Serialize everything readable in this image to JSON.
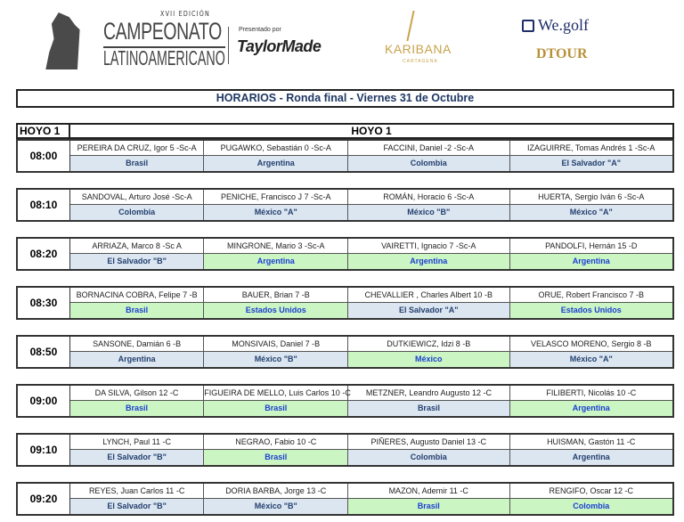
{
  "header": {
    "edition": "XVII EDICIÓN",
    "event_line1": "CAMPEONATO",
    "event_line2": "LATINOAMERICANO",
    "presented_by": "Presentado por",
    "sponsor1": "TaylorMade",
    "sponsor2": "KARIBANA",
    "sponsor2_sub": "CARTAGENA",
    "sponsor3": "We.golf",
    "sponsor4": "DTOUR"
  },
  "title": "HORARIOS  - Ronda final - Viernes 31 de Octubre",
  "table": {
    "hole_label": "HOYO 1",
    "section_label": "HOYO 1",
    "colors": {
      "blue_bg": "#dce6f1",
      "green_bg": "#ccf5c4"
    },
    "groups": [
      {
        "time": "08:00",
        "players": [
          {
            "name": "PEREIRA DA CRUZ, Igor 5 -Sc-A",
            "team": "Brasil",
            "color": "blue"
          },
          {
            "name": "PUGAWKO, Sebastián 0 -Sc-A",
            "team": "Argentina",
            "color": "blue"
          },
          {
            "name": "FACCINI, Daniel -2 -Sc-A",
            "team": "Colombia",
            "color": "blue"
          },
          {
            "name": "IZAGUIRRE, Tomas Andrés 1 -Sc-A",
            "team": "El Salvador \"A\"",
            "color": "blue"
          }
        ]
      },
      {
        "time": "08:10",
        "players": [
          {
            "name": "SANDOVAL, Arturo José  -Sc-A",
            "team": "Colombia",
            "color": "blue"
          },
          {
            "name": "PENICHE, Francisco J  7 -Sc-A",
            "team": "México \"A\"",
            "color": "blue"
          },
          {
            "name": "ROMÁN, Horacio 6 -Sc-A",
            "team": "México \"B\"",
            "color": "blue"
          },
          {
            "name": "HUERTA, Sergio Iván  6 -Sc-A",
            "team": "México \"A\"",
            "color": "blue"
          }
        ]
      },
      {
        "time": "08:20",
        "players": [
          {
            "name": "ARRIAZA, Marco  8 -Sc A",
            "team": "El Salvador \"B\"",
            "color": "blue"
          },
          {
            "name": "MINGRONE, Mario 3 -Sc-A",
            "team": "Argentina",
            "color": "green"
          },
          {
            "name": "VAIRETTI, Ignacio 7 -Sc-A",
            "team": "Argentina",
            "color": "green"
          },
          {
            "name": "PANDOLFI, Hernán 15 -D",
            "team": "Argentina",
            "color": "green"
          }
        ]
      },
      {
        "time": "08:30",
        "players": [
          {
            "name": "BORNACINA COBRA, Felipe 7 -B",
            "team": "Brasil",
            "color": "green"
          },
          {
            "name": "BAUER, Brian 7 -B",
            "team": "Estados Unidos",
            "color": "green"
          },
          {
            "name": "CHEVALLIER , Charles Albert 10 -B",
            "team": "El Salvador \"A\"",
            "color": "blue"
          },
          {
            "name": "ORUE, Robert Francisco 7 -B",
            "team": "Estados Unidos",
            "color": "green"
          }
        ]
      },
      {
        "time": "08:50",
        "players": [
          {
            "name": "SANSONE, Damián 6 -B",
            "team": "Argentina",
            "color": "blue"
          },
          {
            "name": "MONSIVAIS, Daniel 7 -B",
            "team": "México \"B\"",
            "color": "blue"
          },
          {
            "name": "DUTKIEWICZ, Idzi  8 -B",
            "team": "México",
            "color": "green"
          },
          {
            "name": "VELASCO MORENO, Sergio 8 -B",
            "team": "México \"A\"",
            "color": "blue"
          }
        ]
      },
      {
        "time": "09:00",
        "players": [
          {
            "name": "DA SILVA, Gilson 12 -C",
            "team": "Brasil",
            "color": "green"
          },
          {
            "name": "FIGUEIRA DE MELLO, Luis Carlos 10 -C",
            "team": "Brasil",
            "color": "green"
          },
          {
            "name": "METZNER, Leandro Augusto 12 -C",
            "team": "Brasil",
            "color": "blue"
          },
          {
            "name": "FILIBERTI, Nicolás 10 -C",
            "team": "Argentina",
            "color": "green"
          }
        ]
      },
      {
        "time": "09:10",
        "players": [
          {
            "name": "LYNCH, Paul 11 -C",
            "team": "El Salvador \"B\"",
            "color": "blue"
          },
          {
            "name": "NEGRAO, Fabio 10 -C",
            "team": "Brasil",
            "color": "green"
          },
          {
            "name": "PIÑERES, Augusto Daniel 13 -C",
            "team": "Colombia",
            "color": "blue"
          },
          {
            "name": "HUISMAN, Gastón 11 -C",
            "team": "Argentina",
            "color": "blue"
          }
        ]
      },
      {
        "time": "09:20",
        "players": [
          {
            "name": "REYES, Juan Carlos 11 -C",
            "team": "El Salvador \"B\"",
            "color": "blue"
          },
          {
            "name": "DORIA BARBA, Jorge 13 -C",
            "team": "México \"B\"",
            "color": "blue"
          },
          {
            "name": "MAZON, Ademir 11 -C",
            "team": "Brasil",
            "color": "green"
          },
          {
            "name": "RENGIFO, Oscar  12 -C",
            "team": "Colombia",
            "color": "green"
          }
        ]
      }
    ]
  }
}
